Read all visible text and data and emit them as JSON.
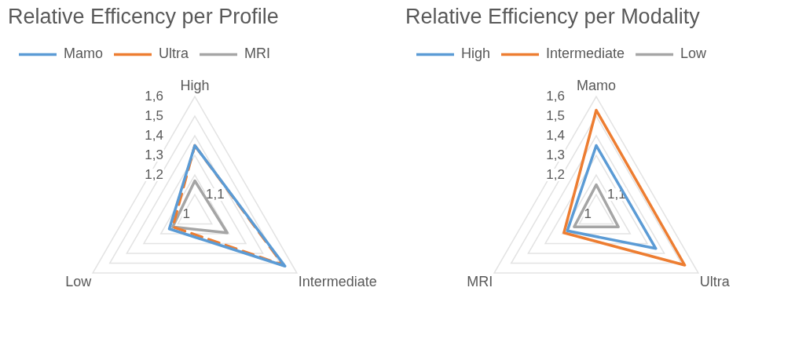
{
  "chart_data": [
    {
      "type": "radar",
      "title": "Relative Efficency per Profile",
      "categories": [
        "High",
        "Intermediate",
        "Low"
      ],
      "ylim": [
        1,
        1.6
      ],
      "yticks": [
        {
          "value": 1,
          "label": "1"
        },
        {
          "value": 1.1,
          "label": "1,1"
        },
        {
          "value": 1.2,
          "label": "1,2"
        },
        {
          "value": 1.3,
          "label": "1,3"
        },
        {
          "value": 1.4,
          "label": "1,4"
        },
        {
          "value": 1.5,
          "label": "1,5"
        },
        {
          "value": 1.6,
          "label": "1,6"
        }
      ],
      "grid": true,
      "legend": "top left",
      "marker": "none",
      "series": [
        {
          "name": "Mamo",
          "color": "#5b9bd5",
          "values": [
            1.35,
            1.53,
            1.15
          ]
        },
        {
          "name": "Ultra",
          "color": "#ed7d31",
          "values": [
            1.35,
            1.52,
            1.13
          ],
          "line_style": "dashed"
        },
        {
          "name": "MRI",
          "color": "#a5a5a5",
          "values": [
            1.17,
            1.19,
            1.13
          ]
        }
      ]
    },
    {
      "type": "radar",
      "title": "Relative Efficiency per Modality",
      "categories": [
        "Mamo",
        "Ultra",
        "MRI"
      ],
      "ylim": [
        1,
        1.6
      ],
      "yticks": [
        {
          "value": 1,
          "label": "1"
        },
        {
          "value": 1.1,
          "label": "1,1"
        },
        {
          "value": 1.2,
          "label": "1,2"
        },
        {
          "value": 1.3,
          "label": "1,3"
        },
        {
          "value": 1.4,
          "label": "1,4"
        },
        {
          "value": 1.5,
          "label": "1,5"
        },
        {
          "value": 1.6,
          "label": "1,6"
        }
      ],
      "grid": true,
      "legend": "top left",
      "marker": "none",
      "series": [
        {
          "name": "High",
          "color": "#5b9bd5",
          "values": [
            1.35,
            1.35,
            1.17
          ]
        },
        {
          "name": "Intermediate",
          "color": "#ed7d31",
          "values": [
            1.53,
            1.52,
            1.19
          ]
        },
        {
          "name": "Low",
          "color": "#a5a5a5",
          "values": [
            1.15,
            1.13,
            1.13
          ]
        }
      ]
    }
  ]
}
